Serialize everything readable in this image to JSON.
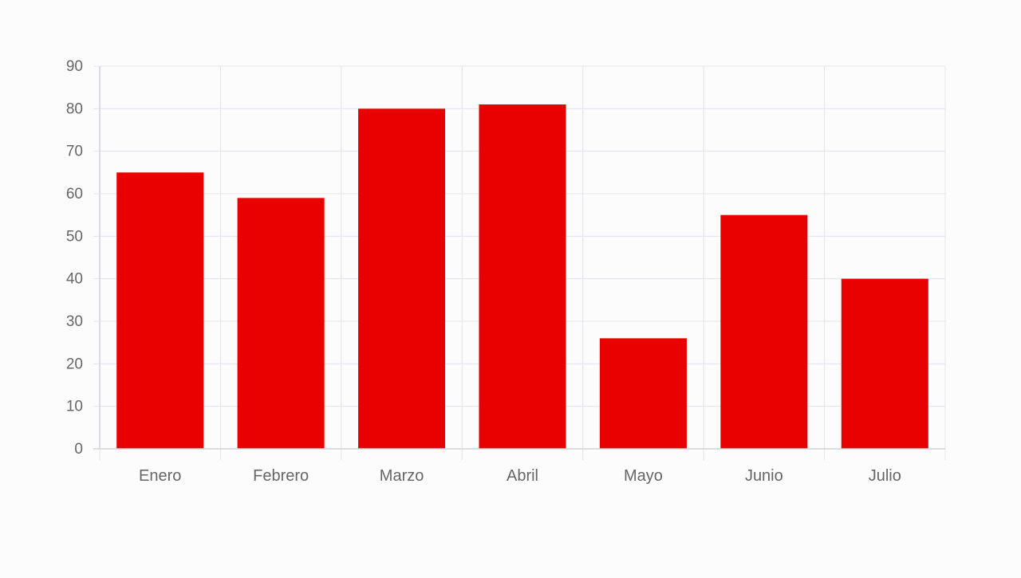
{
  "chart_data": {
    "type": "bar",
    "categories": [
      "Enero",
      "Febrero",
      "Marzo",
      "Abril",
      "Mayo",
      "Junio",
      "Julio"
    ],
    "series": [
      {
        "values": [
          65,
          59,
          80,
          81,
          26,
          55,
          40
        ],
        "color": "#e80000"
      }
    ],
    "ylim": [
      0,
      90
    ],
    "yticks": [
      0,
      10,
      20,
      30,
      40,
      50,
      60,
      70,
      80,
      90
    ],
    "grid": true,
    "legend": "none",
    "colors": {
      "grid": "#e3e3ee",
      "axis": "#d2d2dc",
      "label": "#666666",
      "background": "#fcfcfc"
    }
  }
}
